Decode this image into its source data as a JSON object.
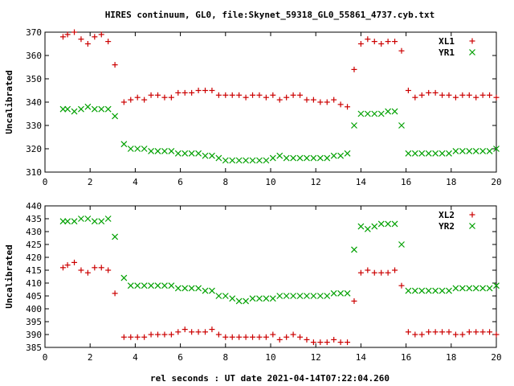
{
  "title": "HIRES continuum, GL0, file:Skynet_59318_GL0_55861_4737.cyb.txt",
  "xlabel": "rel seconds : UT date 2021-04-14T07:22:04.260",
  "colors": {
    "red": "#cc0000",
    "green": "#00a000"
  },
  "chart_data": [
    {
      "type": "scatter",
      "ylabel": "Uncalibrated",
      "xlim": [
        0,
        20
      ],
      "ylim": [
        310,
        370
      ],
      "xticks": [
        0,
        2,
        4,
        6,
        8,
        10,
        12,
        14,
        16,
        18,
        20
      ],
      "yticks": [
        310,
        320,
        330,
        340,
        350,
        360,
        370
      ],
      "legend_position": "top-right",
      "series": [
        {
          "name": "XL1",
          "marker": "+",
          "color": "#cc0000",
          "x": [
            0.8,
            1.0,
            1.3,
            1.6,
            1.9,
            2.2,
            2.5,
            2.8,
            3.1,
            3.5,
            3.8,
            4.1,
            4.4,
            4.7,
            5.0,
            5.3,
            5.6,
            5.9,
            6.2,
            6.5,
            6.8,
            7.1,
            7.4,
            7.7,
            8.0,
            8.3,
            8.6,
            8.9,
            9.2,
            9.5,
            9.8,
            10.1,
            10.4,
            10.7,
            11.0,
            11.3,
            11.6,
            11.9,
            12.2,
            12.5,
            12.8,
            13.1,
            13.4,
            13.7,
            14.0,
            14.3,
            14.6,
            14.9,
            15.2,
            15.5,
            15.8,
            16.1,
            16.4,
            16.7,
            17.0,
            17.3,
            17.6,
            17.9,
            18.2,
            18.5,
            18.8,
            19.1,
            19.4,
            19.7,
            20.0
          ],
          "y": [
            368,
            369,
            370,
            367,
            365,
            368,
            369,
            366,
            356,
            340,
            341,
            342,
            341,
            343,
            343,
            342,
            342,
            344,
            344,
            344,
            345,
            345,
            345,
            343,
            343,
            343,
            343,
            342,
            343,
            343,
            342,
            343,
            341,
            342,
            343,
            343,
            341,
            341,
            340,
            340,
            341,
            339,
            338,
            354,
            365,
            367,
            366,
            365,
            366,
            366,
            362,
            345,
            342,
            343,
            344,
            344,
            343,
            343,
            342,
            343,
            343,
            342,
            343,
            343,
            342
          ]
        },
        {
          "name": "YR1",
          "marker": "x",
          "color": "#00a000",
          "x": [
            0.8,
            1.0,
            1.3,
            1.6,
            1.9,
            2.2,
            2.5,
            2.8,
            3.1,
            3.5,
            3.8,
            4.1,
            4.4,
            4.7,
            5.0,
            5.3,
            5.6,
            5.9,
            6.2,
            6.5,
            6.8,
            7.1,
            7.4,
            7.7,
            8.0,
            8.3,
            8.6,
            8.9,
            9.2,
            9.5,
            9.8,
            10.1,
            10.4,
            10.7,
            11.0,
            11.3,
            11.6,
            11.9,
            12.2,
            12.5,
            12.8,
            13.1,
            13.4,
            13.7,
            14.0,
            14.3,
            14.6,
            14.9,
            15.2,
            15.5,
            15.8,
            16.1,
            16.4,
            16.7,
            17.0,
            17.3,
            17.6,
            17.9,
            18.2,
            18.5,
            18.8,
            19.1,
            19.4,
            19.7,
            20.0
          ],
          "y": [
            337,
            337,
            336,
            337,
            338,
            337,
            337,
            337,
            334,
            322,
            320,
            320,
            320,
            319,
            319,
            319,
            319,
            318,
            318,
            318,
            318,
            317,
            317,
            316,
            315,
            315,
            315,
            315,
            315,
            315,
            315,
            316,
            317,
            316,
            316,
            316,
            316,
            316,
            316,
            316,
            317,
            317,
            318,
            330,
            335,
            335,
            335,
            335,
            336,
            336,
            330,
            318,
            318,
            318,
            318,
            318,
            318,
            318,
            319,
            319,
            319,
            319,
            319,
            319,
            320
          ]
        }
      ]
    },
    {
      "type": "scatter",
      "ylabel": "Uncalibrated",
      "xlabel": "rel seconds : UT date 2021-04-14T07:22:04.260",
      "xlim": [
        0,
        20
      ],
      "ylim": [
        385,
        440
      ],
      "xticks": [
        0,
        2,
        4,
        6,
        8,
        10,
        12,
        14,
        16,
        18,
        20
      ],
      "yticks": [
        385,
        390,
        395,
        400,
        405,
        410,
        415,
        420,
        425,
        430,
        435,
        440
      ],
      "legend_position": "top-right",
      "series": [
        {
          "name": "XL2",
          "marker": "+",
          "color": "#cc0000",
          "x": [
            0.8,
            1.0,
            1.3,
            1.6,
            1.9,
            2.2,
            2.5,
            2.8,
            3.1,
            3.5,
            3.8,
            4.1,
            4.4,
            4.7,
            5.0,
            5.3,
            5.6,
            5.9,
            6.2,
            6.5,
            6.8,
            7.1,
            7.4,
            7.7,
            8.0,
            8.3,
            8.6,
            8.9,
            9.2,
            9.5,
            9.8,
            10.1,
            10.4,
            10.7,
            11.0,
            11.3,
            11.6,
            11.9,
            12.2,
            12.5,
            12.8,
            13.1,
            13.4,
            13.7,
            14.0,
            14.3,
            14.6,
            14.9,
            15.2,
            15.5,
            15.8,
            16.1,
            16.4,
            16.7,
            17.0,
            17.3,
            17.6,
            17.9,
            18.2,
            18.5,
            18.8,
            19.1,
            19.4,
            19.7,
            20.0
          ],
          "y": [
            416,
            417,
            418,
            415,
            414,
            416,
            416,
            415,
            406,
            389,
            389,
            389,
            389,
            390,
            390,
            390,
            390,
            391,
            392,
            391,
            391,
            391,
            392,
            390,
            389,
            389,
            389,
            389,
            389,
            389,
            389,
            390,
            388,
            389,
            390,
            389,
            388,
            387,
            387,
            387,
            388,
            387,
            387,
            403,
            414,
            415,
            414,
            414,
            414,
            415,
            409,
            391,
            390,
            390,
            391,
            391,
            391,
            391,
            390,
            390,
            391,
            391,
            391,
            391,
            390
          ]
        },
        {
          "name": "YR2",
          "marker": "x",
          "color": "#00a000",
          "x": [
            0.8,
            1.0,
            1.3,
            1.6,
            1.9,
            2.2,
            2.5,
            2.8,
            3.1,
            3.5,
            3.8,
            4.1,
            4.4,
            4.7,
            5.0,
            5.3,
            5.6,
            5.9,
            6.2,
            6.5,
            6.8,
            7.1,
            7.4,
            7.7,
            8.0,
            8.3,
            8.6,
            8.9,
            9.2,
            9.5,
            9.8,
            10.1,
            10.4,
            10.7,
            11.0,
            11.3,
            11.6,
            11.9,
            12.2,
            12.5,
            12.8,
            13.1,
            13.4,
            13.7,
            14.0,
            14.3,
            14.6,
            14.9,
            15.2,
            15.5,
            15.8,
            16.1,
            16.4,
            16.7,
            17.0,
            17.3,
            17.6,
            17.9,
            18.2,
            18.5,
            18.8,
            19.1,
            19.4,
            19.7,
            20.0
          ],
          "y": [
            434,
            434,
            434,
            435,
            435,
            434,
            434,
            435,
            428,
            412,
            409,
            409,
            409,
            409,
            409,
            409,
            409,
            408,
            408,
            408,
            408,
            407,
            407,
            405,
            405,
            404,
            403,
            403,
            404,
            404,
            404,
            404,
            405,
            405,
            405,
            405,
            405,
            405,
            405,
            405,
            406,
            406,
            406,
            423,
            432,
            431,
            432,
            433,
            433,
            433,
            425,
            407,
            407,
            407,
            407,
            407,
            407,
            407,
            408,
            408,
            408,
            408,
            408,
            408,
            409
          ]
        }
      ]
    }
  ]
}
